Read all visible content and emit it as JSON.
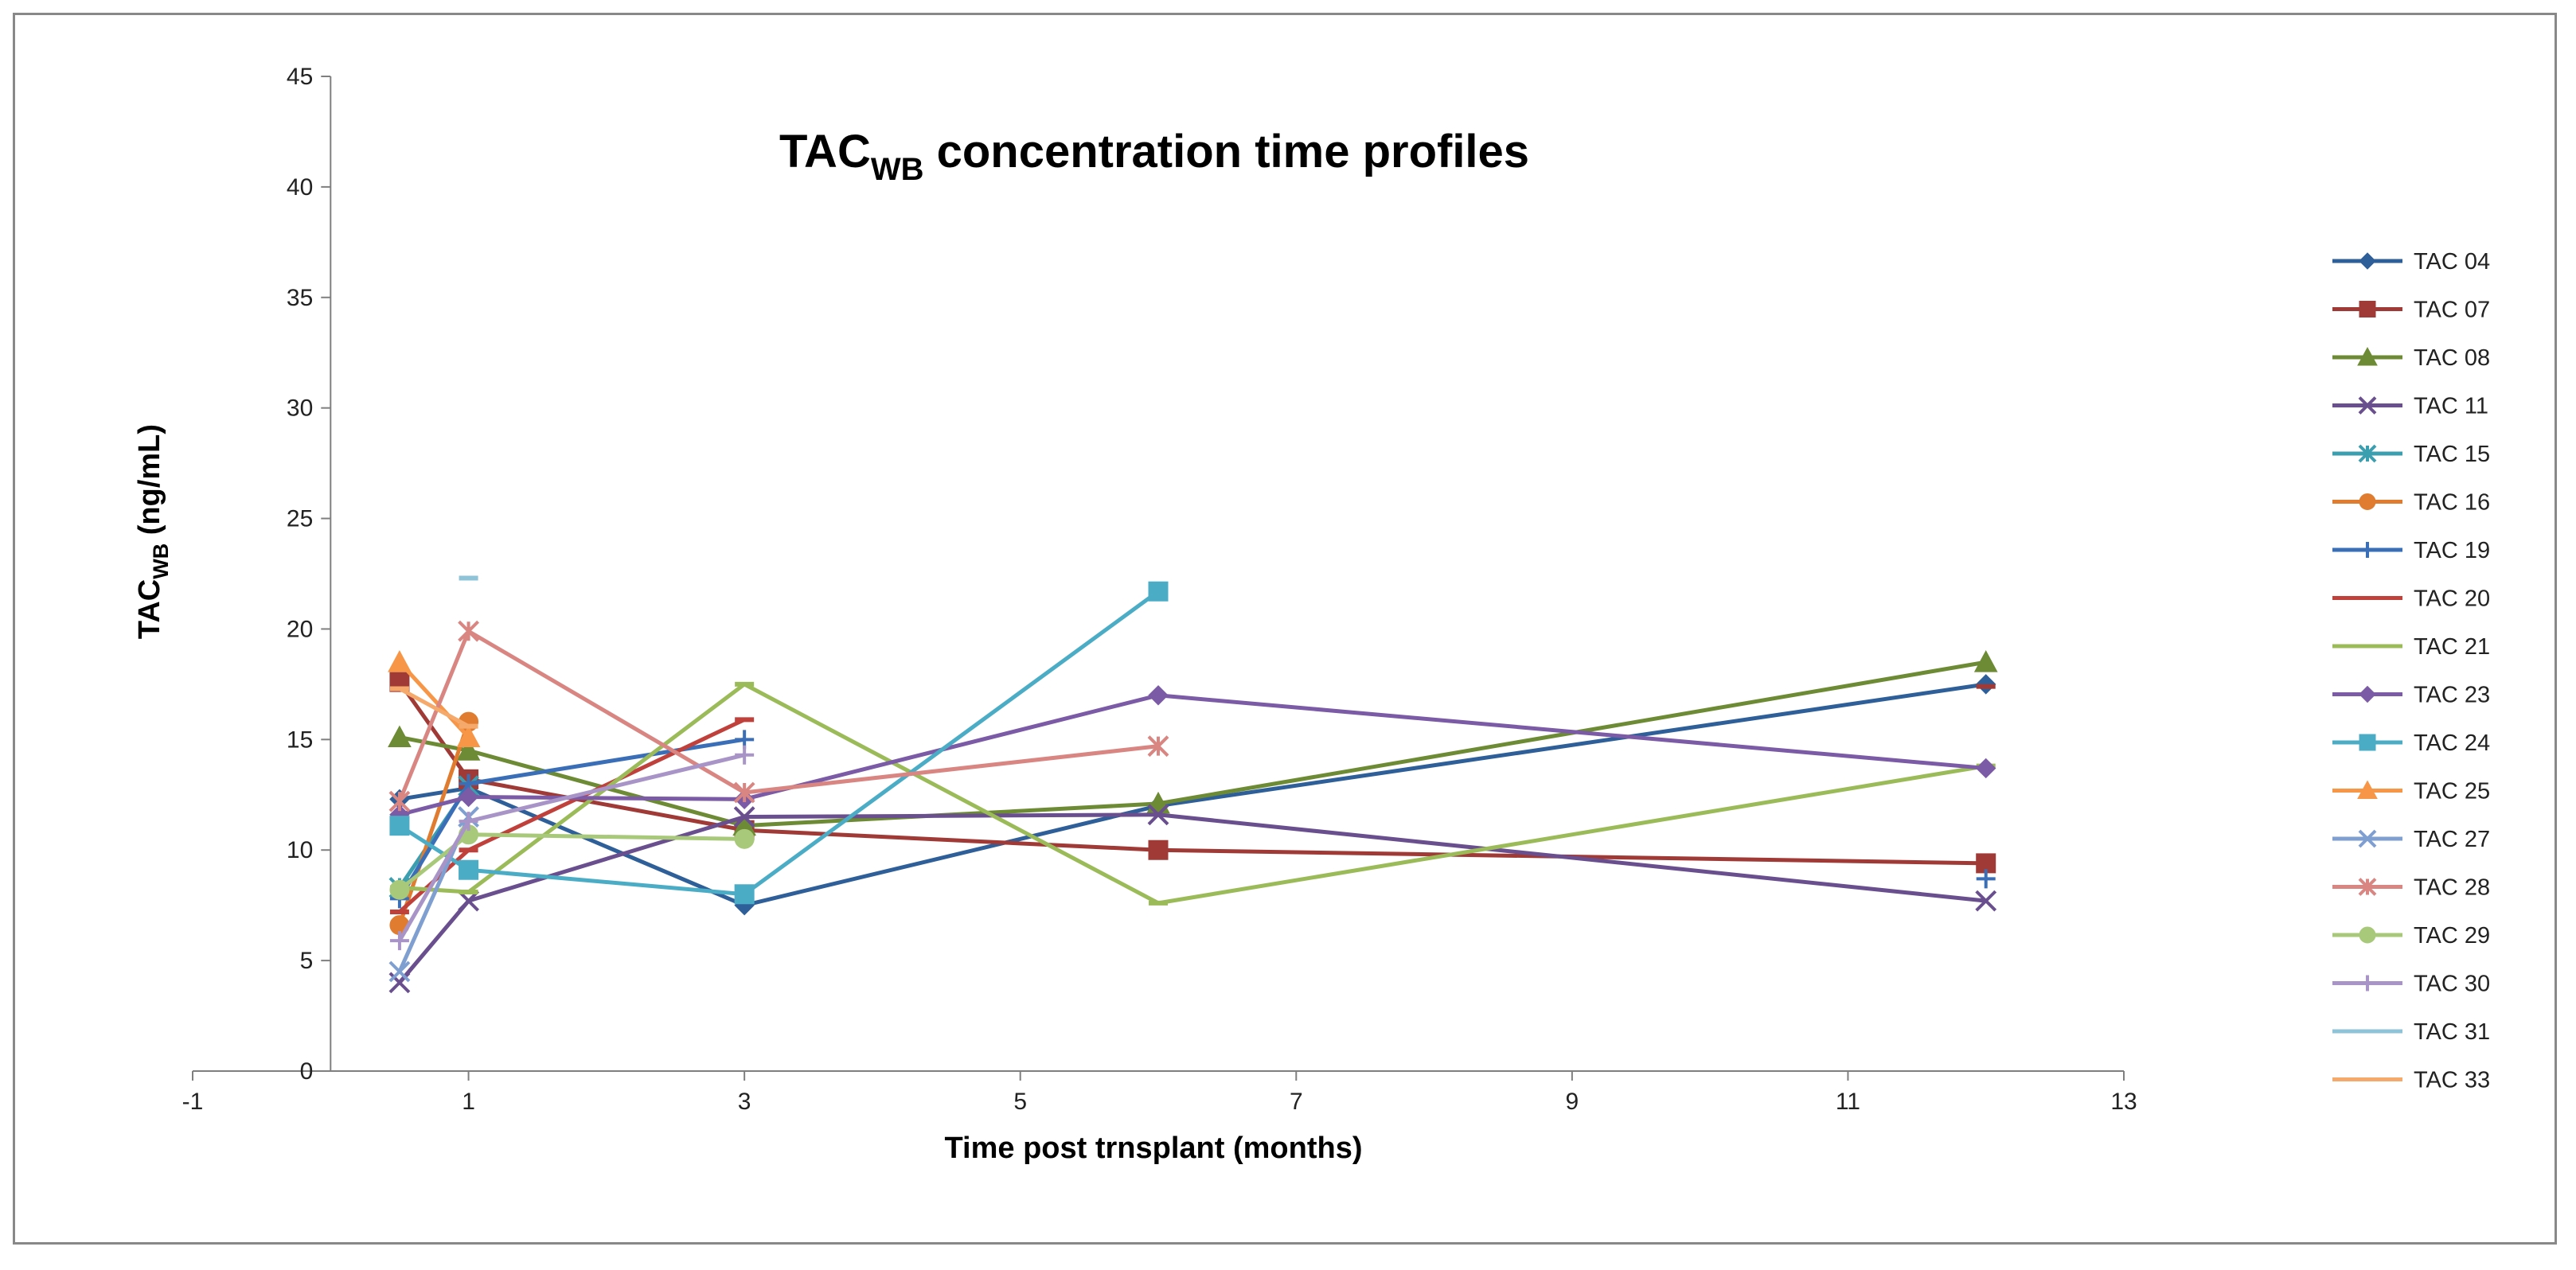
{
  "chart_data": {
    "type": "line",
    "title": "TAC",
    "title_sub": "WB",
    "title_rest": " concentration time profiles",
    "xlabel": "Time post trnsplant  (months)",
    "ylabel": "TAC",
    "ylabel_sub": "WB",
    "ylabel_rest": " (ng/mL)",
    "xlim": [
      -1,
      13
    ],
    "ylim": [
      0,
      45
    ],
    "xticks": [
      -1,
      1,
      3,
      5,
      7,
      9,
      11,
      13
    ],
    "yticks": [
      0,
      5,
      10,
      15,
      20,
      25,
      30,
      35,
      40,
      45
    ],
    "grid": false,
    "legend_position": "right",
    "series": [
      {
        "name": "TAC 04",
        "color": "#2e5f99",
        "marker": "diamond",
        "points": [
          [
            0.5,
            12.3
          ],
          [
            1,
            12.8
          ],
          [
            3,
            7.5
          ],
          [
            6,
            12.0
          ],
          [
            12,
            17.5
          ]
        ]
      },
      {
        "name": "TAC 07",
        "color": "#a03a36",
        "marker": "square",
        "points": [
          [
            0.5,
            17.6
          ],
          [
            1,
            13.2
          ],
          [
            3,
            10.9
          ],
          [
            6,
            10.0
          ],
          [
            12,
            9.4
          ]
        ]
      },
      {
        "name": "TAC 08",
        "color": "#6d8b34",
        "marker": "triangle",
        "points": [
          [
            0.5,
            15.1
          ],
          [
            1,
            14.5
          ],
          [
            3,
            11.1
          ],
          [
            6,
            12.1
          ],
          [
            12,
            18.5
          ]
        ]
      },
      {
        "name": "TAC 11",
        "color": "#6a4f8f",
        "marker": "x",
        "points": [
          [
            0.5,
            4.0
          ],
          [
            1,
            7.7
          ],
          [
            3,
            11.5
          ],
          [
            6,
            11.6
          ],
          [
            12,
            7.7
          ]
        ]
      },
      {
        "name": "TAC 15",
        "color": "#3b9fb0",
        "marker": "star",
        "points": [
          [
            0.5,
            8.3
          ],
          [
            1,
            12.9
          ]
        ]
      },
      {
        "name": "TAC 16",
        "color": "#e07c30",
        "marker": "circle",
        "points": [
          [
            0.5,
            6.6
          ],
          [
            1,
            15.8
          ]
        ]
      },
      {
        "name": "TAC 19",
        "color": "#3a6fb8",
        "marker": "plus",
        "points": [
          [
            0.5,
            7.8
          ],
          [
            1,
            13.0
          ],
          [
            3,
            15.0
          ]
        ]
      },
      {
        "name": "TAC 20",
        "color": "#c0403c",
        "marker": "dash",
        "points": [
          [
            0.5,
            7.2
          ],
          [
            1,
            10.0
          ],
          [
            3,
            15.9
          ]
        ]
      },
      {
        "name": "TAC 21",
        "color": "#9bbb59",
        "marker": "dash",
        "points": [
          [
            0.5,
            8.3
          ],
          [
            1,
            8.1
          ],
          [
            3,
            17.5
          ],
          [
            6,
            7.6
          ],
          [
            12,
            13.8
          ]
        ]
      },
      {
        "name": "TAC 23",
        "color": "#7b5aa6",
        "marker": "diamond",
        "points": [
          [
            0.5,
            11.6
          ],
          [
            1,
            12.4
          ],
          [
            3,
            12.3
          ],
          [
            6,
            17.0
          ],
          [
            12,
            13.7
          ]
        ]
      },
      {
        "name": "TAC 24",
        "color": "#4bacc6",
        "marker": "square",
        "points": [
          [
            0.5,
            11.1
          ],
          [
            1,
            9.1
          ],
          [
            3,
            8.0
          ],
          [
            6,
            21.7
          ]
        ]
      },
      {
        "name": "TAC 25",
        "color": "#f79646",
        "marker": "triangle",
        "points": [
          [
            0.5,
            18.5
          ],
          [
            1,
            15.1
          ]
        ]
      },
      {
        "name": "TAC 27",
        "color": "#7f9fd1",
        "marker": "x",
        "points": [
          [
            0.5,
            4.5
          ],
          [
            1,
            11.5
          ]
        ]
      },
      {
        "name": "TAC 28",
        "color": "#d98682",
        "marker": "star",
        "points": [
          [
            0.5,
            12.2
          ],
          [
            1,
            19.9
          ],
          [
            3,
            12.6
          ],
          [
            6,
            14.7
          ]
        ]
      },
      {
        "name": "TAC 29",
        "color": "#a9c97a",
        "marker": "circle",
        "points": [
          [
            0.5,
            8.2
          ],
          [
            1,
            10.7
          ],
          [
            3,
            10.5
          ]
        ]
      },
      {
        "name": "TAC 30",
        "color": "#a994c8",
        "marker": "plus",
        "points": [
          [
            0.5,
            5.9
          ],
          [
            1,
            11.3
          ],
          [
            3,
            14.3
          ]
        ]
      },
      {
        "name": "TAC 31",
        "color": "#8ec3d8",
        "marker": "dash",
        "points": [
          [
            1,
            22.3
          ]
        ]
      },
      {
        "name": "TAC 33",
        "color": "#f5a96b",
        "marker": "dash",
        "points": [
          [
            0.5,
            17.3
          ],
          [
            1,
            15.6
          ]
        ]
      }
    ],
    "annotations": [
      {
        "series": "TAC 07",
        "marker": "dash",
        "x": 12,
        "y": 17.4
      },
      {
        "series": "TAC 19",
        "marker": "plus",
        "x": 12,
        "y": 8.7
      }
    ]
  }
}
